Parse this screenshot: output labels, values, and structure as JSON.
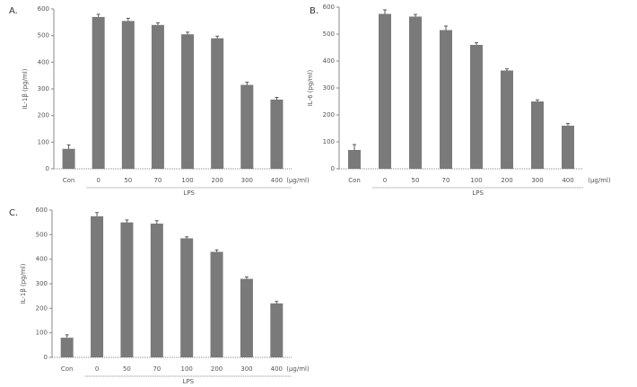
{
  "chart_data": [
    {
      "type": "bar",
      "label": "A.",
      "ylabel": "IL-1β (pg/ml)",
      "x_unit": "(μg/ml)",
      "group_label": "LPS",
      "categories": [
        "Con",
        "0",
        "50",
        "70",
        "100",
        "200",
        "300",
        "400"
      ],
      "values": [
        75,
        570,
        555,
        540,
        505,
        490,
        315,
        260
      ],
      "errors": [
        15,
        10,
        10,
        8,
        8,
        8,
        10,
        8
      ],
      "color": "#7a7a7a",
      "ylim": [
        0,
        600
      ],
      "yticks": [
        0,
        100,
        200,
        300,
        400,
        500,
        600
      ]
    },
    {
      "type": "bar",
      "label": "B.",
      "ylabel": "IL-6 (pg/ml)",
      "x_unit": "(μg/ml)",
      "group_label": "LPS",
      "categories": [
        "Con",
        "0",
        "50",
        "70",
        "100",
        "200",
        "300",
        "400"
      ],
      "values": [
        70,
        575,
        565,
        515,
        460,
        365,
        250,
        160
      ],
      "errors": [
        20,
        15,
        8,
        15,
        8,
        6,
        6,
        8
      ],
      "color": "#7a7a7a",
      "ylim": [
        0,
        600
      ],
      "yticks": [
        0,
        100,
        200,
        300,
        400,
        500,
        600
      ]
    },
    {
      "type": "bar",
      "label": "C.",
      "ylabel": "IL-1β (pg/ml)",
      "x_unit": "(μg/ml)",
      "group_label": "LPS",
      "categories": [
        "Con",
        "0",
        "50",
        "70",
        "100",
        "200",
        "300",
        "400"
      ],
      "values": [
        80,
        575,
        550,
        545,
        485,
        430,
        320,
        220
      ],
      "errors": [
        12,
        15,
        10,
        12,
        6,
        8,
        8,
        8
      ],
      "color": "#7a7a7a",
      "ylim": [
        0,
        600
      ],
      "yticks": [
        0,
        100,
        200,
        300,
        400,
        500,
        600
      ]
    }
  ]
}
